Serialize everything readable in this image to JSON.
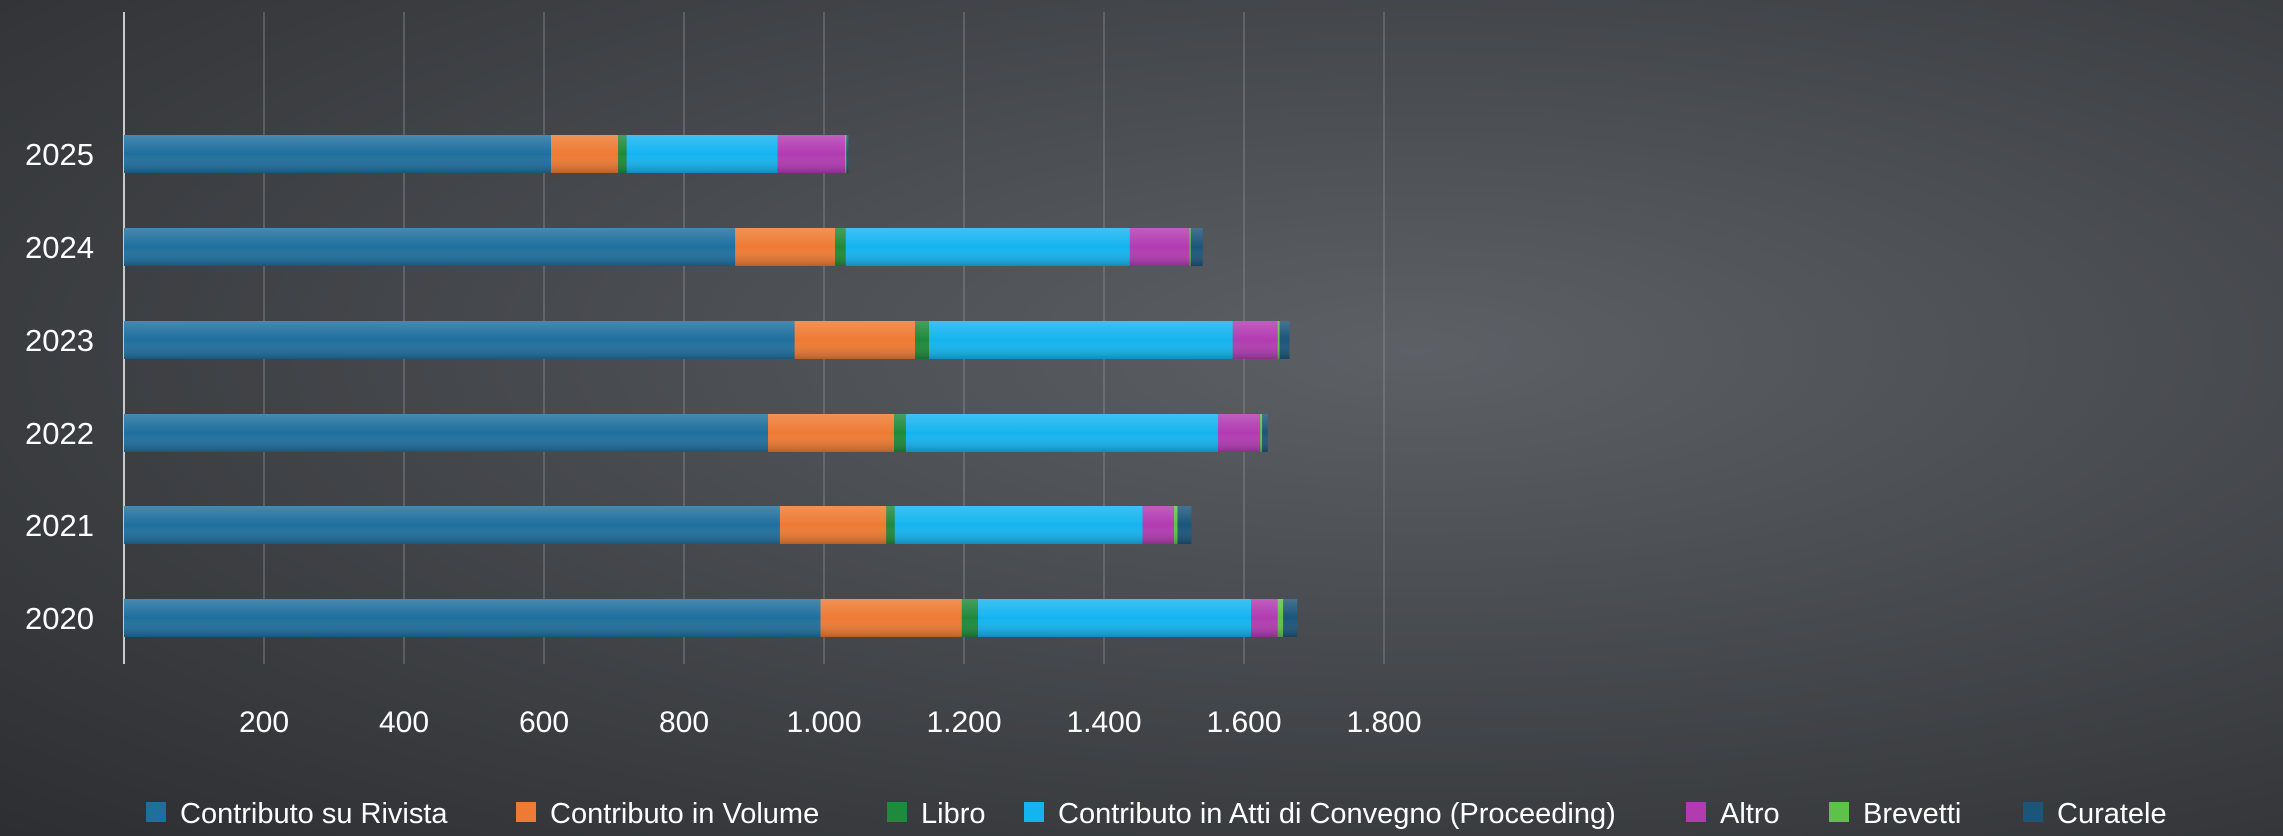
{
  "chart_data": {
    "type": "bar",
    "orientation": "horizontal",
    "stacked": true,
    "categories": [
      "2020",
      "2021",
      "2022",
      "2023",
      "2024",
      "2025"
    ],
    "series": [
      {
        "name": "Contributo su Rivista",
        "color": "#1f6f9e",
        "values": [
          995,
          937,
          920,
          958,
          873,
          610
        ]
      },
      {
        "name": "Contributo in Volume",
        "color": "#ee7a33",
        "values": [
          202,
          152,
          180,
          172,
          143,
          96
        ]
      },
      {
        "name": "Libro",
        "color": "#1e8a3c",
        "values": [
          23,
          12,
          17,
          20,
          15,
          12
        ]
      },
      {
        "name": "Contributo in Atti di Convegno (Proceeding)",
        "color": "#14b4f0",
        "values": [
          390,
          354,
          446,
          434,
          406,
          216
        ]
      },
      {
        "name": "Altro",
        "color": "#b23bb2",
        "values": [
          38,
          45,
          60,
          64,
          85,
          96
        ]
      },
      {
        "name": "Brevetti",
        "color": "#5ec24a",
        "values": [
          8,
          5,
          3,
          3,
          2,
          2
        ]
      },
      {
        "name": "Curatele",
        "color": "#1b557a",
        "values": [
          20,
          20,
          8,
          14,
          17,
          3
        ]
      }
    ],
    "xlim": [
      0,
      1800
    ],
    "xticks": [
      200,
      400,
      600,
      800,
      1000,
      1200,
      1400,
      1600,
      1800
    ],
    "xtick_labels": [
      "200",
      "400",
      "600",
      "800",
      "1.000",
      "1.200",
      "1.400",
      "1.600",
      "1.800"
    ],
    "grid": true,
    "legend_position": "bottom",
    "title": "",
    "xlabel": "",
    "ylabel": ""
  }
}
